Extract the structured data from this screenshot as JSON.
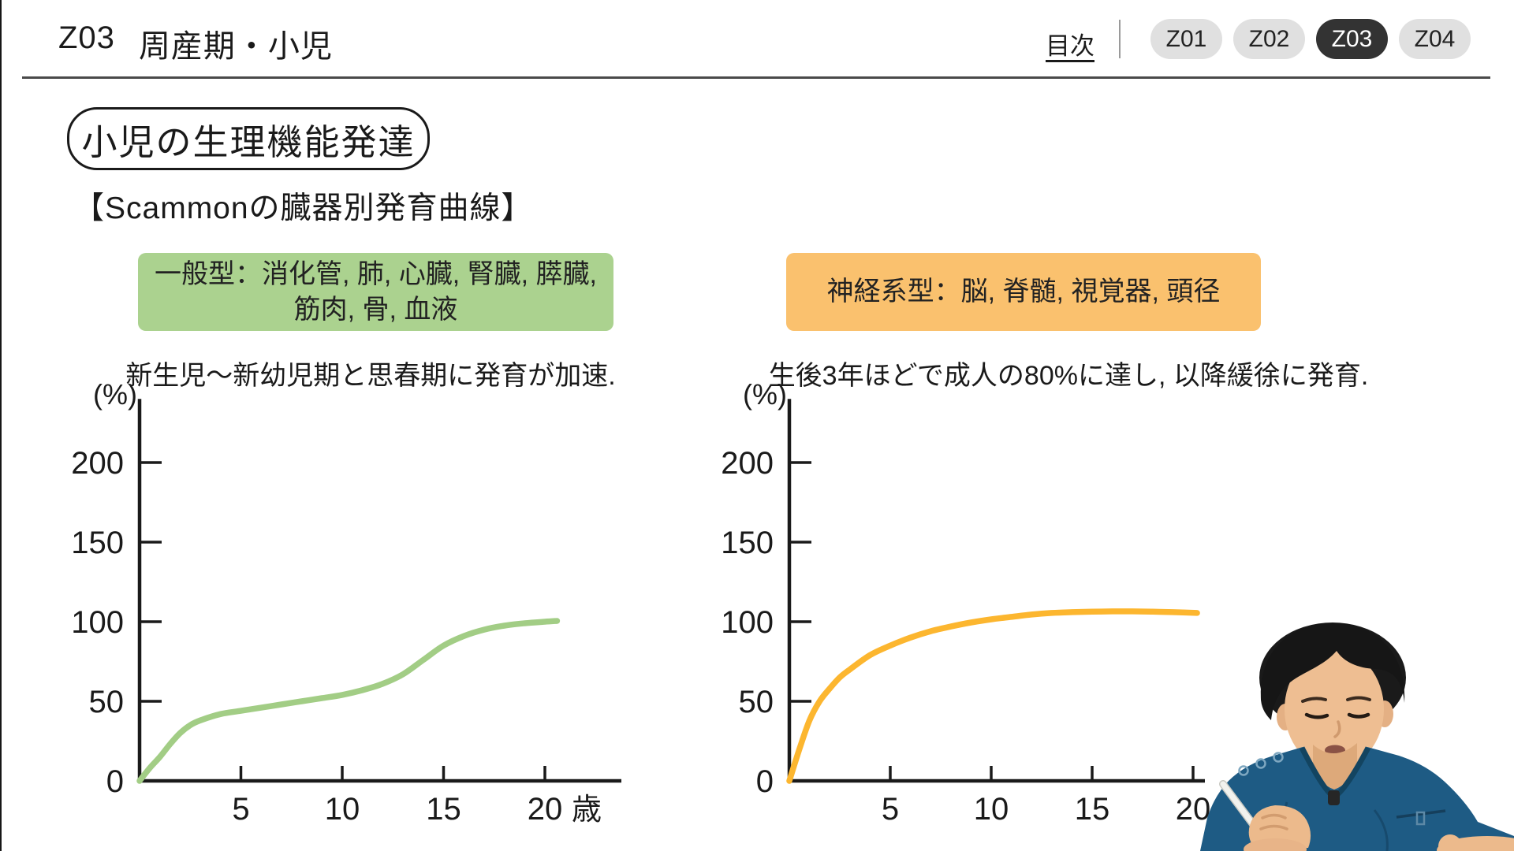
{
  "header": {
    "lesson_code": "Z03",
    "lesson_title": "周産期・小児",
    "toc_label": "目次",
    "nav_items": [
      {
        "label": "Z01",
        "active": false
      },
      {
        "label": "Z02",
        "active": false
      },
      {
        "label": "Z03",
        "active": true
      },
      {
        "label": "Z04",
        "active": false
      }
    ]
  },
  "slide": {
    "title": "小児の生理機能発達",
    "subtitle": "【Scammonの臓器別発育曲線】"
  },
  "colors": {
    "general_box": "#abd28f",
    "general_curve": "#a2cd85",
    "neural_box": "#fac16e",
    "neural_curve": "#fcb62f",
    "axis": "#1a1a1a",
    "pill_bg": "#e0e0e0",
    "pill_active_bg": "#333333",
    "pill_active_text": "#ffffff"
  },
  "chart_data": [
    {
      "id": "general",
      "type": "line",
      "box_label": "一般型：消化管, 肺, 心臓, 腎臓, 膵臓, 筋肉, 骨, 血液",
      "box_lines": [
        "一般型：消化管, 肺, 心臓, 腎臓, 膵臓,",
        "筋肉, 骨, 血液"
      ],
      "caption": "新生児〜新幼児期と思春期に発育が加速.",
      "ylabel": "(%)",
      "x_unit": "歳",
      "x_ticks": [
        5,
        10,
        15,
        20
      ],
      "y_ticks": [
        0,
        50,
        100,
        150,
        200
      ],
      "xlim": [
        0,
        23.8
      ],
      "ylim": [
        0,
        240
      ],
      "grid": false,
      "x": [
        0,
        0.5,
        1,
        1.5,
        2,
        2.5,
        3,
        4,
        5,
        6,
        7,
        8,
        9,
        10,
        11,
        12,
        13,
        14,
        15,
        16,
        17,
        18,
        19,
        20,
        20.6
      ],
      "y": [
        0,
        8,
        15,
        23,
        30,
        35,
        38,
        42,
        44,
        46,
        48,
        50,
        52,
        54,
        57,
        61,
        67,
        76,
        85,
        91,
        95,
        97.5,
        99,
        100,
        100.5
      ],
      "line_color": "#a2cd85"
    },
    {
      "id": "neural",
      "type": "line",
      "box_label": "神経系型：脳, 脊髄, 視覚器, 頭径",
      "box_lines": [
        "神経系型：脳, 脊髄, 視覚器, 頭径"
      ],
      "caption": "生後3年ほどで成人の80%に達し, 以降緩徐に発育.",
      "ylabel": "(%)",
      "x_unit": "",
      "x_ticks": [
        5,
        10,
        15,
        20
      ],
      "y_ticks": [
        0,
        50,
        100,
        150,
        200
      ],
      "xlim": [
        0,
        20.6
      ],
      "ylim": [
        0,
        240
      ],
      "grid": false,
      "x": [
        0,
        0.5,
        1,
        1.5,
        2,
        2.5,
        3,
        4,
        5,
        6,
        7,
        8,
        9,
        10,
        11,
        12,
        13,
        14,
        15,
        16,
        17,
        18,
        19,
        20.2
      ],
      "y": [
        0,
        20,
        38,
        50,
        58,
        65,
        70,
        79,
        85,
        90,
        94,
        97,
        99.5,
        101.5,
        103,
        104.5,
        105.5,
        106,
        106.3,
        106.5,
        106.5,
        106.3,
        106,
        105.5
      ],
      "line_color": "#fcb62f"
    }
  ]
}
